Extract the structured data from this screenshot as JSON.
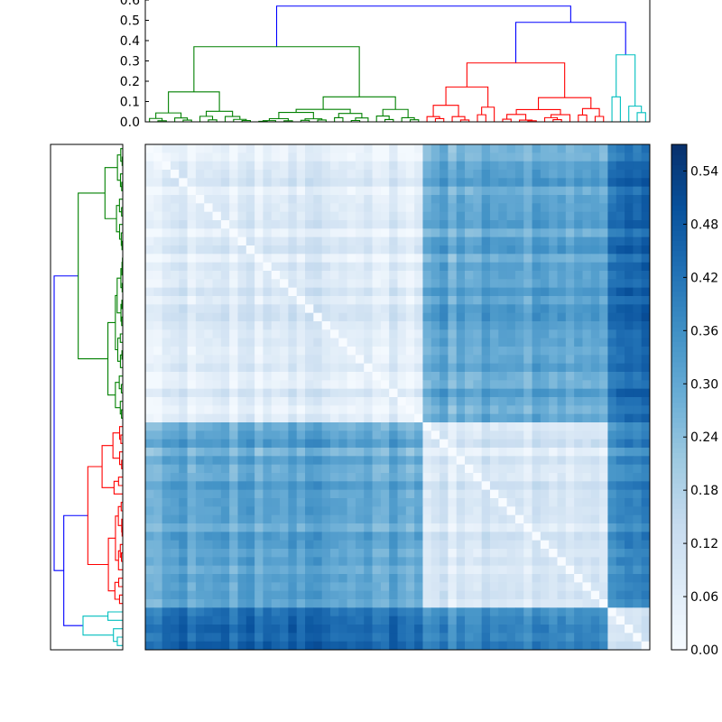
{
  "chart_data": {
    "type": "heatmap",
    "title": "",
    "n_leaves": 60,
    "matrix_description": "clustered pairwise distance heatmap with dendrograms; values 0 on the diagonal",
    "colormap": "Blues",
    "color_range": [
      0.0,
      0.57
    ],
    "colorbar": {
      "ticks": [
        "0.00",
        "0.06",
        "0.12",
        "0.18",
        "0.24",
        "0.30",
        "0.36",
        "0.42",
        "0.48",
        "0.54"
      ],
      "tick_values": [
        0.0,
        0.06,
        0.12,
        0.18,
        0.24,
        0.3,
        0.36,
        0.42,
        0.48,
        0.54
      ]
    },
    "top_dendrogram": {
      "ylim": [
        0.0,
        0.6
      ],
      "ticks": [
        "0.0",
        "0.1",
        "0.2",
        "0.3",
        "0.4",
        "0.5",
        "0.6"
      ],
      "tick_values": [
        0.0,
        0.1,
        0.2,
        0.3,
        0.4,
        0.5,
        0.6
      ]
    },
    "clusters": [
      {
        "color": "#008000",
        "size": 33,
        "merge_height": 0.37
      },
      {
        "color": "#ff0000",
        "size": 22,
        "merge_height": 0.29
      },
      {
        "color": "#00bfbf",
        "size": 5,
        "merge_height": 0.33
      }
    ],
    "root_merge_height": 0.57,
    "upper_merge_height": 0.49,
    "block_mean_distance": {
      "green_green": 0.07,
      "red_red": 0.08,
      "cyan_cyan": 0.1,
      "green_red": 0.3,
      "green_cyan": 0.44,
      "red_cyan": 0.37
    },
    "colors": {
      "link_root": "#0000ff",
      "green": "#008000",
      "red": "#ff0000",
      "cyan": "#00bfbf"
    }
  }
}
